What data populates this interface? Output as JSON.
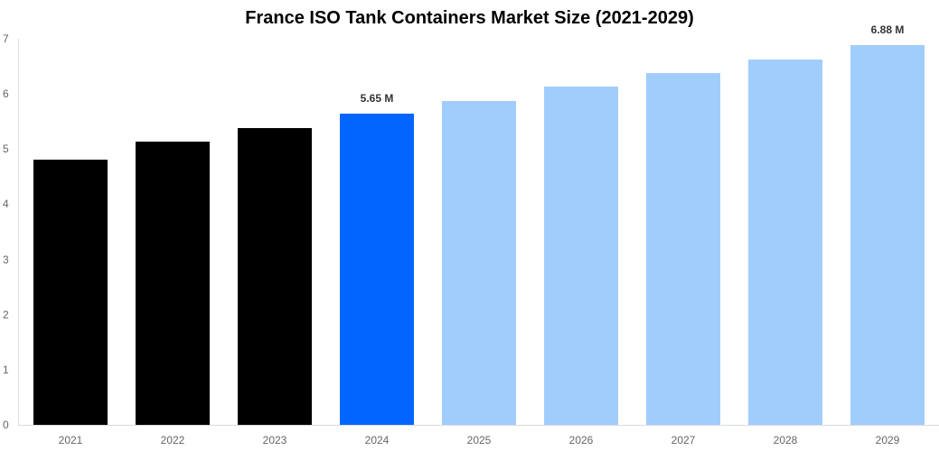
{
  "chart_data": {
    "type": "bar",
    "title": "France ISO Tank Containers Market Size (2021-2029)",
    "xlabel": "",
    "ylabel": "",
    "ylim": [
      0,
      7
    ],
    "yticks": [
      0,
      1,
      2,
      3,
      4,
      5,
      6,
      7
    ],
    "grid": false,
    "legend": null,
    "categories": [
      "2021",
      "2022",
      "2023",
      "2024",
      "2025",
      "2026",
      "2027",
      "2028",
      "2029"
    ],
    "values": [
      4.81,
      5.14,
      5.38,
      5.65,
      5.87,
      6.13,
      6.38,
      6.62,
      6.88
    ],
    "bar_colors": [
      "#000000",
      "#000000",
      "#000000",
      "#0066ff",
      "#a1cdfd",
      "#a1cdfd",
      "#a1cdfd",
      "#a1cdfd",
      "#a1cdfd"
    ],
    "data_labels": [
      {
        "category": "2024",
        "text": "5.65 M"
      },
      {
        "category": "2029",
        "text": "6.88 M"
      }
    ],
    "unit": "M"
  }
}
